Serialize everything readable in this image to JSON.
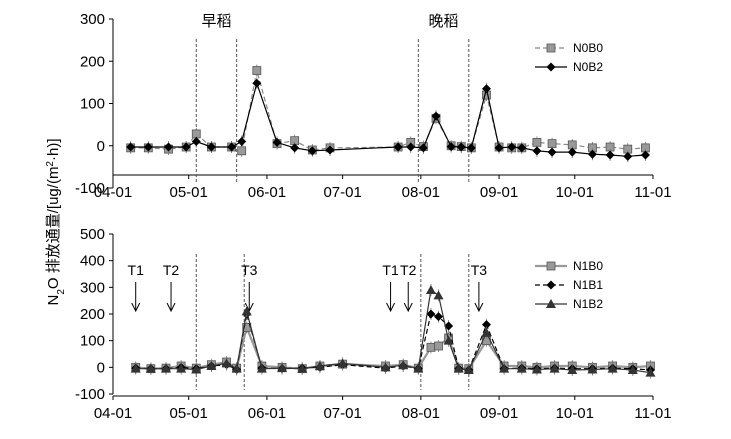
{
  "chart_data": [
    {
      "type": "line",
      "xlabel": "",
      "ylabel": "N₂O 排放通量/[ug/(m²·h)]",
      "x_tick_labels": [
        "04-01",
        "05-01",
        "06-01",
        "07-01",
        "08-01",
        "09-01",
        "10-01",
        "11-01"
      ],
      "y_ticks": [
        300,
        200,
        100,
        0,
        -100
      ],
      "ylim": [
        -100,
        300
      ],
      "season_labels": [
        "早稻",
        "晚稻"
      ],
      "vlines": [
        "05-04",
        "05-20",
        "07-31",
        "08-20"
      ],
      "legend_position": "top-right",
      "series": [
        {
          "name": "N0B0",
          "style": "dashed",
          "marker": "square",
          "x": [
            "04-08",
            "04-15",
            "04-23",
            "04-30",
            "05-04",
            "05-10",
            "05-18",
            "05-22",
            "05-28",
            "06-05",
            "06-12",
            "06-19",
            "06-26",
            "07-23",
            "07-28",
            "08-02",
            "08-07",
            "08-13",
            "08-17",
            "08-21",
            "08-27",
            "09-01",
            "09-06",
            "09-10",
            "09-16",
            "09-22",
            "09-30",
            "10-08",
            "10-15",
            "10-22",
            "10-29"
          ],
          "y": [
            -5,
            -5,
            -8,
            -3,
            28,
            -3,
            -3,
            -12,
            178,
            5,
            12,
            -10,
            -5,
            -3,
            8,
            -2,
            65,
            0,
            -2,
            -5,
            120,
            -3,
            -5,
            -5,
            8,
            5,
            2,
            -5,
            -3,
            -8,
            -5
          ]
        },
        {
          "name": "N0B2",
          "style": "solid",
          "marker": "diamond",
          "x": [
            "04-08",
            "04-15",
            "04-23",
            "04-30",
            "05-04",
            "05-10",
            "05-18",
            "05-22",
            "05-28",
            "06-05",
            "06-12",
            "06-19",
            "06-26",
            "07-23",
            "07-28",
            "08-02",
            "08-07",
            "08-13",
            "08-17",
            "08-21",
            "08-27",
            "09-01",
            "09-06",
            "09-10",
            "09-16",
            "09-22",
            "09-30",
            "10-08",
            "10-15",
            "10-22",
            "10-29"
          ],
          "y": [
            -3,
            -3,
            -3,
            -3,
            10,
            -3,
            -3,
            10,
            148,
            8,
            -5,
            -12,
            -10,
            -3,
            -3,
            -5,
            70,
            -2,
            -3,
            -5,
            135,
            -5,
            -3,
            -5,
            -12,
            -15,
            -15,
            -20,
            -22,
            -25,
            -22
          ]
        }
      ]
    },
    {
      "type": "line",
      "xlabel": "",
      "ylabel": "N₂O 排放通量/[ug/(m²·h)]",
      "x_tick_labels": [
        "04-01",
        "05-01",
        "06-01",
        "07-01",
        "08-01",
        "09-01",
        "10-01",
        "11-01"
      ],
      "y_ticks": [
        500,
        400,
        300,
        200,
        100,
        0,
        -100
      ],
      "ylim": [
        -100,
        500
      ],
      "vlines": [
        "05-04",
        "05-23",
        "08-01",
        "08-20"
      ],
      "annotations": [
        {
          "text": "T1",
          "x": "04-10"
        },
        {
          "text": "T2",
          "x": "04-24"
        },
        {
          "text": "T3",
          "x": "05-25"
        },
        {
          "text": "T1",
          "x": "07-20"
        },
        {
          "text": "T2",
          "x": "07-27"
        },
        {
          "text": "T3",
          "x": "08-24"
        }
      ],
      "legend_position": "top-right",
      "series": [
        {
          "name": "N1B0",
          "style": "solid-gray",
          "marker": "square",
          "x": [
            "04-10",
            "04-16",
            "04-22",
            "04-28",
            "05-04",
            "05-10",
            "05-16",
            "05-20",
            "05-24",
            "05-30",
            "06-07",
            "06-15",
            "06-22",
            "07-01",
            "07-18",
            "07-25",
            "07-31",
            "08-05",
            "08-08",
            "08-12",
            "08-16",
            "08-20",
            "08-27",
            "09-03",
            "09-10",
            "09-16",
            "09-23",
            "09-30",
            "10-08",
            "10-16",
            "10-24",
            "10-31"
          ],
          "y": [
            0,
            -5,
            -3,
            5,
            -3,
            10,
            20,
            -3,
            150,
            5,
            0,
            -5,
            5,
            12,
            5,
            10,
            -3,
            75,
            80,
            110,
            -3,
            -5,
            100,
            5,
            5,
            0,
            5,
            5,
            0,
            5,
            0,
            5
          ]
        },
        {
          "name": "N1B1",
          "style": "dashed",
          "marker": "diamond",
          "x": [
            "04-10",
            "04-16",
            "04-22",
            "04-28",
            "05-04",
            "05-10",
            "05-16",
            "05-20",
            "05-24",
            "05-30",
            "06-07",
            "06-15",
            "06-22",
            "07-01",
            "07-18",
            "07-25",
            "07-31",
            "08-05",
            "08-08",
            "08-12",
            "08-16",
            "08-20",
            "08-27",
            "09-03",
            "09-10",
            "09-16",
            "09-23",
            "09-30",
            "10-08",
            "10-16",
            "10-24",
            "10-31"
          ],
          "y": [
            -3,
            -5,
            -5,
            0,
            -5,
            5,
            10,
            -8,
            200,
            -3,
            -5,
            -3,
            0,
            10,
            -3,
            5,
            -5,
            200,
            190,
            155,
            -5,
            -10,
            160,
            -5,
            -3,
            -5,
            -3,
            -5,
            -5,
            -3,
            -5,
            -10
          ]
        },
        {
          "name": "N1B2",
          "style": "solid",
          "marker": "triangle",
          "x": [
            "04-10",
            "04-16",
            "04-22",
            "04-28",
            "05-04",
            "05-10",
            "05-16",
            "05-20",
            "05-24",
            "05-30",
            "06-07",
            "06-15",
            "06-22",
            "07-01",
            "07-18",
            "07-25",
            "07-31",
            "08-05",
            "08-08",
            "08-12",
            "08-16",
            "08-20",
            "08-27",
            "09-03",
            "09-10",
            "09-16",
            "09-23",
            "09-30",
            "10-08",
            "10-16",
            "10-24",
            "10-31"
          ],
          "y": [
            -5,
            -5,
            -5,
            -5,
            -8,
            5,
            15,
            -5,
            210,
            -5,
            -3,
            -5,
            5,
            15,
            0,
            8,
            -5,
            290,
            270,
            100,
            -5,
            -10,
            130,
            -5,
            -5,
            -8,
            -5,
            -10,
            -8,
            -5,
            -10,
            -20
          ]
        }
      ]
    }
  ]
}
